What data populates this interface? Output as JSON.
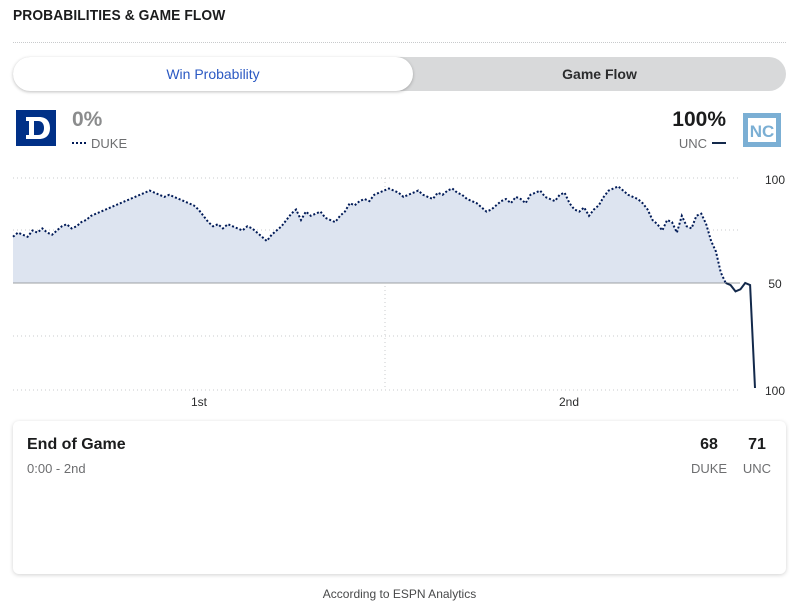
{
  "header": {
    "title": "PROBABILITIES & GAME FLOW"
  },
  "toggle": {
    "win_probability": "Win Probability",
    "game_flow": "Game Flow"
  },
  "teams": {
    "away": {
      "abbr": "DUKE",
      "pct": "0%",
      "color": "#001a57"
    },
    "home": {
      "abbr": "UNC",
      "pct": "100%",
      "color": "#13294b",
      "logo_color": "#7bafd4"
    }
  },
  "chart_data": {
    "type": "area",
    "y_ticks_right": [
      "100",
      "50",
      "100"
    ],
    "x_ticks": [
      "1st",
      "2nd"
    ],
    "ylim": [
      0,
      100
    ],
    "midline": 50,
    "fill_color": "#dde4f0",
    "grid": "dotted",
    "series": [
      {
        "values": [
          72,
          74,
          73,
          72,
          75,
          74,
          76,
          74,
          73,
          75,
          77,
          78,
          76,
          77,
          79,
          80,
          82,
          83,
          84,
          85,
          86,
          87,
          88,
          89,
          90,
          91,
          92,
          93,
          94,
          93,
          92,
          91,
          92,
          91,
          90,
          89,
          88,
          87,
          85,
          82,
          79,
          77,
          78,
          76,
          78,
          77,
          76,
          75,
          77,
          76,
          74,
          72,
          70,
          73,
          75,
          77,
          80,
          83,
          85,
          80,
          84,
          82,
          83,
          84,
          81,
          80,
          79,
          82,
          84,
          88,
          87,
          89,
          90,
          89,
          92,
          93,
          94,
          95,
          94,
          93,
          91,
          92,
          93,
          94,
          92,
          91,
          90,
          93,
          92,
          94,
          95,
          93,
          92,
          90,
          89,
          88,
          86,
          84,
          85,
          87,
          89,
          90,
          88,
          91,
          90,
          88,
          92,
          93,
          94,
          91,
          90,
          89,
          92,
          93,
          88,
          85,
          84,
          86,
          82,
          85,
          87,
          91,
          94,
          95,
          96,
          94,
          92,
          91,
          90,
          88,
          85,
          80,
          78,
          75,
          80,
          79,
          74,
          82,
          77,
          76,
          82,
          83,
          78,
          70,
          65,
          55,
          50,
          49,
          46,
          47,
          51,
          49,
          0
        ]
      }
    ]
  },
  "final": {
    "title": "End of Game",
    "subtitle": "0:00 - 2nd",
    "away_score": "68",
    "home_score": "71",
    "away_abbr": "DUKE",
    "home_abbr": "UNC"
  },
  "footnote": "According to ESPN Analytics"
}
